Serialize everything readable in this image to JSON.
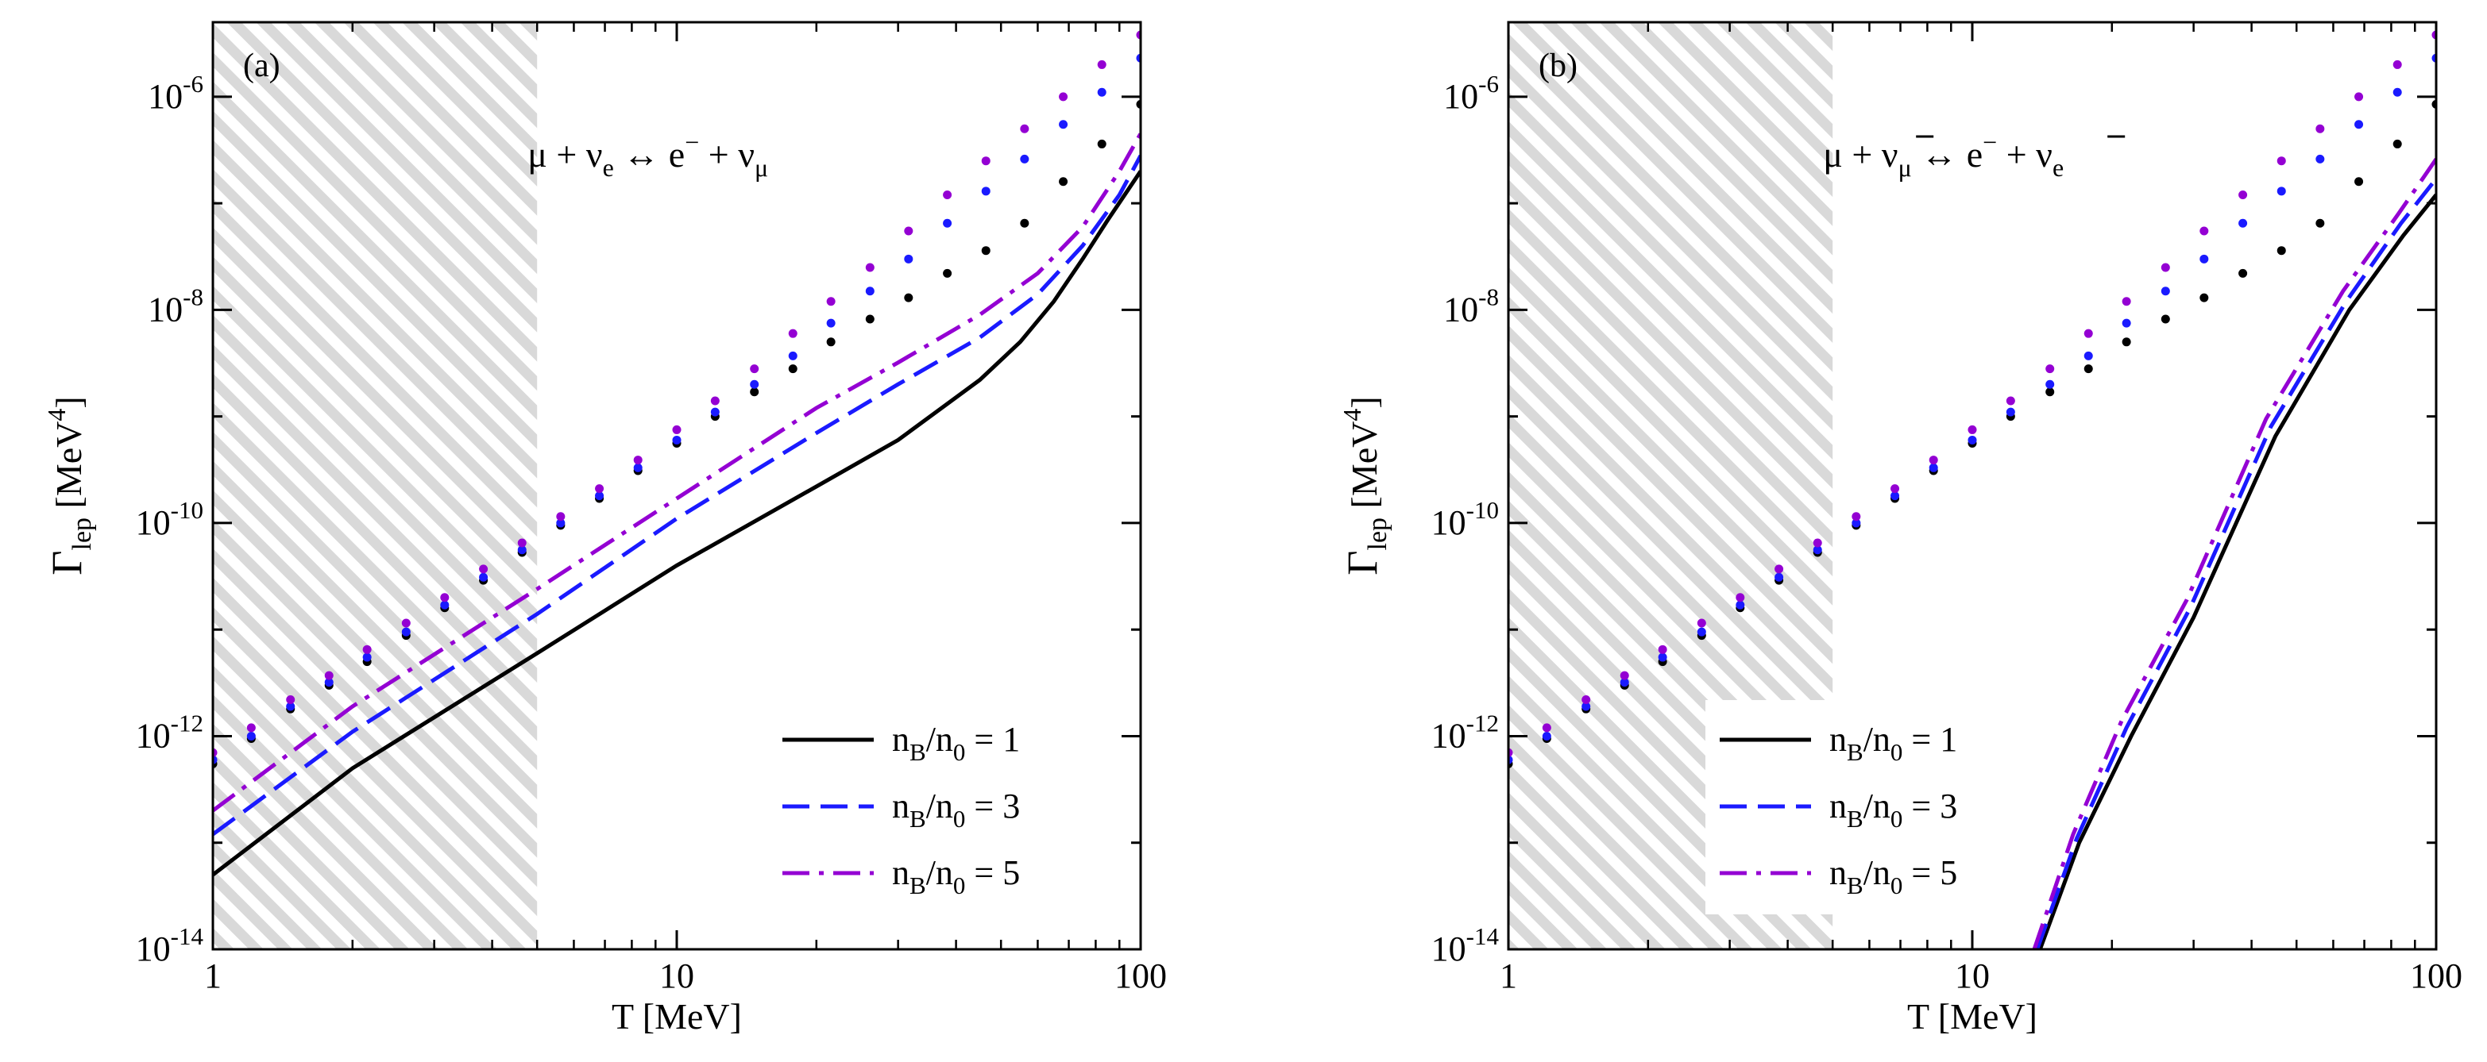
{
  "chart_data": [
    {
      "type": "line",
      "panel_label": "(a)",
      "reaction": "μ + νe ↔ e⁻ + νμ",
      "reaction_parts": {
        "left": "μ + ν",
        "left_sub": "e",
        "arrow": "↔",
        "right": "e",
        "right_sup": "−",
        "plus": "+ ν",
        "right_sub": "μ"
      },
      "xlabel": "T [MeV]",
      "ylabel": "Γlep [MeV⁴]",
      "ylabel_parts": {
        "main": "Γ",
        "sub": "lep",
        "unit": "[MeV",
        "sup": "4",
        "close": "]"
      },
      "xscale": "log",
      "yscale": "log",
      "xlim": [
        1,
        100
      ],
      "ylim": [
        1e-14,
        5e-06
      ],
      "x_ticks": [
        {
          "v": 1,
          "label": "1"
        },
        {
          "v": 10,
          "label": "10"
        },
        {
          "v": 100,
          "label": "100"
        }
      ],
      "y_ticks": [
        {
          "v": 1e-14,
          "base": "10",
          "exp": "-14"
        },
        {
          "v": 1e-12,
          "base": "10",
          "exp": "-12"
        },
        {
          "v": 1e-10,
          "base": "10",
          "exp": "-10"
        },
        {
          "v": 1e-08,
          "base": "10",
          "exp": "-8"
        },
        {
          "v": 1e-06,
          "base": "10",
          "exp": "-6"
        }
      ],
      "shaded_region": {
        "x_from": 1,
        "x_to": 5,
        "pattern": "diagonal-hatch"
      },
      "legend_position": "bottom-right",
      "series": [
        {
          "name": "nB/n0 = 1",
          "legend": {
            "a": "n",
            "a_sub": "B",
            "b": "/n",
            "b_sub": "0",
            "c": " = 1"
          },
          "style": "solid",
          "color": "#000000",
          "x": [
            1,
            2,
            5,
            10,
            20,
            30,
            45,
            55,
            65,
            75,
            85,
            100
          ],
          "y": [
            5e-14,
            5e-13,
            6e-12,
            4e-11,
            2.2e-10,
            6e-10,
            2.2e-09,
            5e-09,
            1.2e-08,
            3e-08,
            7e-08,
            2e-07
          ]
        },
        {
          "name": "nB/n0 = 3",
          "legend": {
            "a": "n",
            "a_sub": "B",
            "b": "/n",
            "b_sub": "0",
            "c": " = 3"
          },
          "style": "dashed",
          "color": "#1a1aff",
          "x": [
            1,
            2,
            5,
            10,
            20,
            30,
            45,
            60,
            75,
            90,
            100
          ],
          "y": [
            1.2e-13,
            1.1e-12,
            1.4e-11,
            1.1e-10,
            7e-10,
            2e-09,
            5.5e-09,
            1.4e-08,
            4e-08,
            1.2e-07,
            2.8e-07
          ]
        },
        {
          "name": "nB/n0 = 5",
          "legend": {
            "a": "n",
            "a_sub": "B",
            "b": "/n",
            "b_sub": "0",
            "c": " = 5"
          },
          "style": "dashdot",
          "color": "#9400d3",
          "x": [
            1,
            2,
            5,
            10,
            20,
            30,
            45,
            60,
            75,
            90,
            100
          ],
          "y": [
            2e-13,
            1.9e-12,
            2.4e-11,
            1.7e-10,
            1.2e-09,
            3.2e-09,
            9e-09,
            2.2e-08,
            6e-08,
            2e-07,
            4.5e-07
          ]
        },
        {
          "name": "dots nB/n0 = 1",
          "style": "dots",
          "color": "#000000",
          "x": [
            1,
            1.21,
            1.47,
            1.78,
            2.15,
            2.61,
            3.16,
            3.83,
            4.64,
            5.62,
            6.81,
            8.25,
            10,
            12.1,
            14.7,
            17.8,
            21.5,
            26.1,
            31.6,
            38.3,
            46.4,
            56.2,
            68.1,
            82.5,
            100
          ],
          "y": [
            5.5e-13,
            9.5e-13,
            1.8e-12,
            3e-12,
            5e-12,
            8.8e-12,
            1.6e-11,
            2.9e-11,
            5.3e-11,
            9.5e-11,
            1.7e-10,
            3.1e-10,
            5.6e-10,
            1e-09,
            1.7e-09,
            2.8e-09,
            5e-09,
            8.2e-09,
            1.3e-08,
            2.2e-08,
            3.6e-08,
            6.5e-08,
            1.6e-07,
            3.6e-07,
            8.5e-07
          ]
        },
        {
          "name": "dots nB/n0 = 3",
          "style": "dots",
          "color": "#1a1aff",
          "x": [
            1,
            1.21,
            1.47,
            1.78,
            2.15,
            2.61,
            3.16,
            3.83,
            4.64,
            5.62,
            6.81,
            8.25,
            10,
            12.1,
            14.7,
            17.8,
            21.5,
            26.1,
            31.6,
            38.3,
            46.4,
            56.2,
            68.1,
            82.5,
            100
          ],
          "y": [
            6e-13,
            1e-12,
            1.9e-12,
            3.2e-12,
            5.5e-12,
            9.5e-12,
            1.7e-11,
            3.1e-11,
            5.6e-11,
            1e-10,
            1.8e-10,
            3.3e-10,
            6e-10,
            1.1e-09,
            2e-09,
            3.7e-09,
            7.5e-09,
            1.5e-08,
            3e-08,
            6.5e-08,
            1.3e-07,
            2.6e-07,
            5.5e-07,
            1.1e-06,
            2.3e-06
          ]
        },
        {
          "name": "dots nB/n0 = 5",
          "style": "dots",
          "color": "#9400d3",
          "x": [
            1,
            1.21,
            1.47,
            1.78,
            2.15,
            2.61,
            3.16,
            3.83,
            4.64,
            5.62,
            6.81,
            8.25,
            10,
            12.1,
            14.7,
            17.8,
            21.5,
            26.1,
            31.6,
            38.3,
            46.4,
            56.2,
            68.1,
            82.5,
            100
          ],
          "y": [
            7e-13,
            1.2e-12,
            2.2e-12,
            3.7e-12,
            6.5e-12,
            1.15e-11,
            2e-11,
            3.7e-11,
            6.5e-11,
            1.15e-10,
            2.1e-10,
            3.9e-10,
            7.5e-10,
            1.4e-09,
            2.8e-09,
            6e-09,
            1.2e-08,
            2.5e-08,
            5.5e-08,
            1.2e-07,
            2.5e-07,
            5e-07,
            1e-06,
            2e-06,
            3.8e-06
          ]
        }
      ]
    },
    {
      "type": "line",
      "panel_label": "(b)",
      "reaction": "μ + ν̄μ ↔ e⁻ + ν̄e",
      "reaction_parts": {
        "left": "μ + ν",
        "left_sub": "μ",
        "arrow": "↔",
        "right": "e",
        "right_sup": "−",
        "plus": "+ ν",
        "right_sub": "e"
      },
      "xlabel": "T [MeV]",
      "ylabel": "Γlep [MeV⁴]",
      "ylabel_parts": {
        "main": "Γ",
        "sub": "lep",
        "unit": "[MeV",
        "sup": "4",
        "close": "]"
      },
      "xscale": "log",
      "yscale": "log",
      "xlim": [
        1,
        100
      ],
      "ylim": [
        1e-14,
        5e-06
      ],
      "x_ticks": [
        {
          "v": 1,
          "label": "1"
        },
        {
          "v": 10,
          "label": "10"
        },
        {
          "v": 100,
          "label": "100"
        }
      ],
      "y_ticks": [
        {
          "v": 1e-14,
          "base": "10",
          "exp": "-14"
        },
        {
          "v": 1e-12,
          "base": "10",
          "exp": "-12"
        },
        {
          "v": 1e-10,
          "base": "10",
          "exp": "-10"
        },
        {
          "v": 1e-08,
          "base": "10",
          "exp": "-8"
        },
        {
          "v": 1e-06,
          "base": "10",
          "exp": "-6"
        }
      ],
      "shaded_region": {
        "x_from": 1,
        "x_to": 5,
        "pattern": "diagonal-hatch"
      },
      "legend_position": "bottom-center",
      "series": [
        {
          "name": "nB/n0 = 1",
          "legend": {
            "a": "n",
            "a_sub": "B",
            "b": "/n",
            "b_sub": "0",
            "c": " = 1"
          },
          "style": "solid",
          "color": "#000000",
          "x": [
            14,
            17,
            22,
            30,
            45,
            65,
            85,
            100
          ],
          "y": [
            1e-14,
            1e-13,
            1e-12,
            1.3e-11,
            6.5e-10,
            1e-08,
            5e-08,
            1.2e-07
          ]
        },
        {
          "name": "nB/n0 = 3",
          "legend": {
            "a": "n",
            "a_sub": "B",
            "b": "/n",
            "b_sub": "0",
            "c": " = 3"
          },
          "style": "dashed",
          "color": "#1a1aff",
          "x": [
            13.8,
            16.8,
            21.5,
            29.5,
            44,
            64,
            84,
            100
          ],
          "y": [
            1e-14,
            1.1e-13,
            1.2e-12,
            1.6e-11,
            8e-10,
            1.2e-08,
            6.5e-08,
            1.7e-07
          ]
        },
        {
          "name": "nB/n0 = 5",
          "legend": {
            "a": "n",
            "a_sub": "B",
            "b": "/n",
            "b_sub": "0",
            "c": " = 5"
          },
          "style": "dashdot",
          "color": "#9400d3",
          "x": [
            13.6,
            16.5,
            21,
            29,
            43,
            63,
            83,
            100
          ],
          "y": [
            1e-14,
            1.2e-13,
            1.4e-12,
            1.9e-11,
            9.5e-10,
            1.5e-08,
            8e-08,
            2.6e-07
          ]
        },
        {
          "name": "dots nB/n0 = 1",
          "style": "dots",
          "color": "#000000",
          "x": [
            1,
            1.21,
            1.47,
            1.78,
            2.15,
            2.61,
            3.16,
            3.83,
            4.64,
            5.62,
            6.81,
            8.25,
            10,
            12.1,
            14.7,
            17.8,
            21.5,
            26.1,
            31.6,
            38.3,
            46.4,
            56.2,
            68.1,
            82.5,
            100
          ],
          "y": [
            5.5e-13,
            9.5e-13,
            1.8e-12,
            3e-12,
            5e-12,
            8.8e-12,
            1.6e-11,
            2.9e-11,
            5.3e-11,
            9.5e-11,
            1.7e-10,
            3.1e-10,
            5.6e-10,
            1e-09,
            1.7e-09,
            2.8e-09,
            5e-09,
            8.2e-09,
            1.3e-08,
            2.2e-08,
            3.6e-08,
            6.5e-08,
            1.6e-07,
            3.6e-07,
            8.5e-07
          ]
        },
        {
          "name": "dots nB/n0 = 3",
          "style": "dots",
          "color": "#1a1aff",
          "x": [
            1,
            1.21,
            1.47,
            1.78,
            2.15,
            2.61,
            3.16,
            3.83,
            4.64,
            5.62,
            6.81,
            8.25,
            10,
            12.1,
            14.7,
            17.8,
            21.5,
            26.1,
            31.6,
            38.3,
            46.4,
            56.2,
            68.1,
            82.5,
            100
          ],
          "y": [
            6e-13,
            1e-12,
            1.9e-12,
            3.2e-12,
            5.5e-12,
            9.5e-12,
            1.7e-11,
            3.1e-11,
            5.6e-11,
            1e-10,
            1.8e-10,
            3.3e-10,
            6e-10,
            1.1e-09,
            2e-09,
            3.7e-09,
            7.5e-09,
            1.5e-08,
            3e-08,
            6.5e-08,
            1.3e-07,
            2.6e-07,
            5.5e-07,
            1.1e-06,
            2.3e-06
          ]
        },
        {
          "name": "dots nB/n0 = 5",
          "style": "dots",
          "color": "#9400d3",
          "x": [
            1,
            1.21,
            1.47,
            1.78,
            2.15,
            2.61,
            3.16,
            3.83,
            4.64,
            5.62,
            6.81,
            8.25,
            10,
            12.1,
            14.7,
            17.8,
            21.5,
            26.1,
            31.6,
            38.3,
            46.4,
            56.2,
            68.1,
            82.5,
            100
          ],
          "y": [
            7e-13,
            1.2e-12,
            2.2e-12,
            3.7e-12,
            6.5e-12,
            1.15e-11,
            2e-11,
            3.7e-11,
            6.5e-11,
            1.15e-10,
            2.1e-10,
            3.9e-10,
            7.5e-10,
            1.4e-09,
            2.8e-09,
            6e-09,
            1.2e-08,
            2.5e-08,
            5.5e-08,
            1.2e-07,
            2.5e-07,
            5e-07,
            1e-06,
            2e-06,
            3.8e-06
          ]
        }
      ]
    }
  ]
}
